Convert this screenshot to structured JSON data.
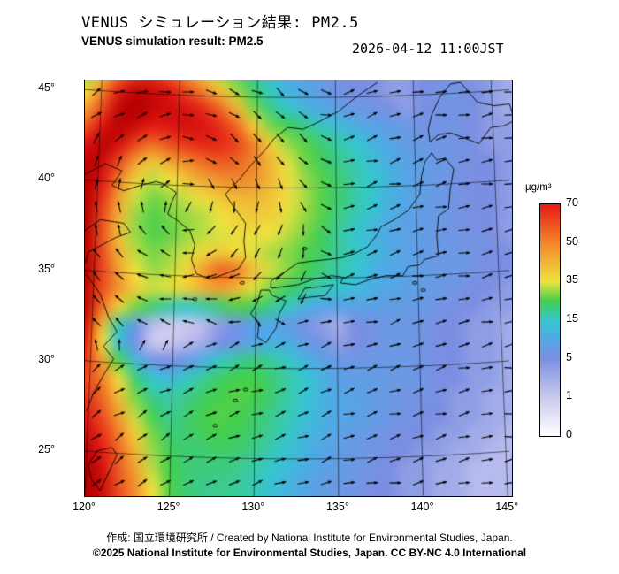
{
  "header": {
    "title_jp": "VENUS シミュレーション結果: PM2.5",
    "title_en": "VENUS simulation result: PM2.5",
    "timestamp": "2026-04-12 11:00JST"
  },
  "axes": {
    "lat_ticks": [
      {
        "label": "45°",
        "value": 45
      },
      {
        "label": "40°",
        "value": 40
      },
      {
        "label": "35°",
        "value": 35
      },
      {
        "label": "30°",
        "value": 30
      },
      {
        "label": "25°",
        "value": 25
      }
    ],
    "lon_ticks": [
      {
        "label": "120°",
        "value": 120
      },
      {
        "label": "125°",
        "value": 125
      },
      {
        "label": "130°",
        "value": 130
      },
      {
        "label": "135°",
        "value": 135
      },
      {
        "label": "140°",
        "value": 140
      },
      {
        "label": "145°",
        "value": 145
      }
    ]
  },
  "colorbar": {
    "unit": "µg/m³",
    "tick_values": [
      70,
      50,
      35,
      15,
      5,
      1,
      0
    ],
    "stops": [
      {
        "v": 0,
        "c": "#ffffff"
      },
      {
        "v": 1,
        "c": "#c9c9ef"
      },
      {
        "v": 5,
        "c": "#7b8fe2"
      },
      {
        "v": 10,
        "c": "#53a7e6"
      },
      {
        "v": 15,
        "c": "#35c6cf"
      },
      {
        "v": 25,
        "c": "#44cf4c"
      },
      {
        "v": 35,
        "c": "#eee23f"
      },
      {
        "v": 50,
        "c": "#f1872c"
      },
      {
        "v": 70,
        "c": "#e31a15"
      },
      {
        "v": 82,
        "c": "#b30000"
      }
    ]
  },
  "map_extent": {
    "lon_min": 120,
    "lon_max": 145.25,
    "lat_min": 22.5,
    "lat_max": 45.5
  },
  "chart_data": {
    "type": "heatmap",
    "title": "VENUS simulation result: PM2.5",
    "unit": "µg/m³",
    "lon_start": 120,
    "lon_step": 1,
    "lat_start": 46,
    "lat_step": -1,
    "values": [
      [
        28,
        38,
        50,
        60,
        62,
        55,
        45,
        38,
        30,
        24,
        18,
        14,
        11,
        9,
        7,
        6,
        5,
        5,
        4,
        4,
        5,
        5,
        5,
        4,
        4,
        3,
        3
      ],
      [
        35,
        50,
        68,
        78,
        76,
        70,
        60,
        50,
        40,
        30,
        22,
        16,
        12,
        10,
        8,
        6,
        5,
        5,
        4,
        4,
        5,
        6,
        6,
        5,
        4,
        3,
        3
      ],
      [
        45,
        60,
        78,
        82,
        78,
        75,
        72,
        66,
        55,
        42,
        28,
        20,
        15,
        12,
        10,
        8,
        7,
        6,
        5,
        4,
        5,
        6,
        6,
        5,
        4,
        3,
        3
      ],
      [
        58,
        72,
        80,
        76,
        70,
        72,
        74,
        72,
        66,
        55,
        38,
        28,
        24,
        20,
        16,
        13,
        11,
        9,
        8,
        7,
        6,
        6,
        6,
        5,
        4,
        4,
        3
      ],
      [
        72,
        80,
        74,
        62,
        55,
        60,
        65,
        68,
        67,
        62,
        50,
        38,
        30,
        26,
        22,
        18,
        15,
        12,
        10,
        8,
        7,
        6,
        6,
        5,
        4,
        4,
        3
      ],
      [
        80,
        76,
        62,
        46,
        40,
        45,
        50,
        55,
        58,
        56,
        50,
        42,
        34,
        28,
        24,
        20,
        17,
        14,
        11,
        9,
        8,
        7,
        6,
        5,
        5,
        4,
        4
      ],
      [
        82,
        72,
        52,
        38,
        32,
        35,
        40,
        45,
        48,
        50,
        48,
        42,
        36,
        30,
        26,
        22,
        18,
        15,
        12,
        10,
        8,
        7,
        6,
        5,
        5,
        4,
        4
      ],
      [
        82,
        66,
        46,
        33,
        28,
        30,
        33,
        36,
        40,
        42,
        42,
        40,
        36,
        31,
        26,
        22,
        18,
        15,
        12,
        10,
        8,
        7,
        6,
        5,
        5,
        4,
        4
      ],
      [
        82,
        62,
        43,
        30,
        26,
        28,
        30,
        32,
        35,
        38,
        39,
        38,
        34,
        30,
        26,
        21,
        17,
        14,
        11,
        9,
        8,
        7,
        6,
        5,
        5,
        4,
        4
      ],
      [
        82,
        60,
        41,
        30,
        26,
        27,
        30,
        32,
        34,
        36,
        36,
        35,
        32,
        28,
        24,
        19,
        15,
        12,
        10,
        9,
        8,
        7,
        6,
        6,
        5,
        4,
        4
      ],
      [
        82,
        61,
        43,
        32,
        28,
        30,
        33,
        37,
        39,
        37,
        34,
        31,
        29,
        26,
        23,
        19,
        16,
        13,
        11,
        9,
        8,
        7,
        7,
        6,
        5,
        5,
        4
      ],
      [
        82,
        63,
        46,
        35,
        30,
        32,
        37,
        46,
        56,
        52,
        40,
        33,
        29,
        25,
        21,
        18,
        15,
        12,
        10,
        9,
        8,
        7,
        7,
        6,
        5,
        5,
        4
      ],
      [
        80,
        60,
        48,
        38,
        33,
        34,
        38,
        43,
        46,
        42,
        34,
        28,
        24,
        20,
        17,
        15,
        13,
        11,
        10,
        9,
        8,
        7,
        6,
        5,
        5,
        4,
        4
      ],
      [
        80,
        55,
        38,
        28,
        22,
        18,
        16,
        18,
        22,
        26,
        24,
        20,
        16,
        12,
        10,
        9,
        9,
        9,
        8,
        8,
        7,
        6,
        5,
        5,
        4,
        4,
        3
      ],
      [
        76,
        42,
        18,
        7,
        2,
        1,
        1,
        2,
        4,
        6,
        9,
        10,
        8,
        6,
        4,
        3,
        5,
        6,
        7,
        7,
        6,
        5,
        5,
        4,
        4,
        3,
        3
      ],
      [
        70,
        36,
        14,
        5,
        1,
        1,
        2,
        3,
        5,
        7,
        10,
        12,
        11,
        8,
        6,
        4,
        5,
        6,
        7,
        7,
        6,
        5,
        5,
        4,
        4,
        3,
        3
      ],
      [
        66,
        46,
        26,
        13,
        6,
        5,
        7,
        11,
        16,
        19,
        21,
        19,
        16,
        12,
        9,
        7,
        7,
        7,
        7,
        7,
        6,
        5,
        5,
        4,
        4,
        3,
        3
      ],
      [
        62,
        52,
        36,
        22,
        15,
        13,
        16,
        19,
        23,
        25,
        25,
        22,
        18,
        15,
        12,
        9,
        8,
        8,
        7,
        7,
        6,
        5,
        5,
        4,
        4,
        3,
        3
      ],
      [
        66,
        56,
        41,
        28,
        20,
        18,
        20,
        23,
        25,
        26,
        25,
        22,
        18,
        15,
        12,
        10,
        9,
        8,
        7,
        6,
        6,
        5,
        4,
        4,
        3,
        3,
        3
      ],
      [
        72,
        60,
        46,
        32,
        24,
        20,
        22,
        25,
        26,
        25,
        23,
        20,
        17,
        14,
        12,
        10,
        9,
        8,
        7,
        6,
        5,
        5,
        4,
        4,
        3,
        3,
        2
      ],
      [
        76,
        66,
        51,
        38,
        28,
        22,
        22,
        24,
        25,
        24,
        22,
        19,
        16,
        13,
        11,
        9,
        8,
        7,
        6,
        5,
        5,
        4,
        4,
        3,
        3,
        2,
        2
      ],
      [
        80,
        70,
        56,
        42,
        30,
        24,
        22,
        22,
        23,
        22,
        20,
        17,
        14,
        12,
        10,
        8,
        7,
        6,
        5,
        5,
        4,
        4,
        3,
        3,
        2,
        2,
        2
      ],
      [
        82,
        74,
        58,
        45,
        32,
        25,
        22,
        21,
        21,
        20,
        18,
        15,
        13,
        11,
        9,
        8,
        7,
        6,
        5,
        4,
        4,
        3,
        3,
        2,
        2,
        2,
        2
      ],
      [
        82,
        76,
        60,
        48,
        35,
        26,
        22,
        20,
        20,
        19,
        17,
        14,
        12,
        10,
        8,
        7,
        6,
        5,
        5,
        4,
        4,
        3,
        3,
        2,
        2,
        2,
        2
      ]
    ],
    "wind": {
      "north": {
        "clon": 126,
        "clat": 39.5,
        "ku": 1.1,
        "kv": 0.9,
        "ubias": 1
      },
      "south": {
        "u0": 5,
        "ulon": 0.18,
        "v0": 3.5,
        "vlon": -0.07
      },
      "front": {
        "lat0": 31,
        "slope": 0.12,
        "blend": 1.5
      },
      "east": {
        "lon0": 132,
        "span": 4
      }
    }
  },
  "footer": {
    "credit": "作成: 国立環境研究所 / Created by National Institute for Environmental Studies, Japan.",
    "copyright": "©2025 National Institute for Environmental Studies, Japan. CC BY-NC 4.0 International"
  }
}
